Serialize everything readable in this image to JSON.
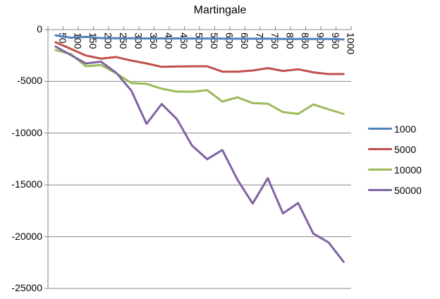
{
  "chart_data": {
    "type": "line",
    "title": "Martingale",
    "xlabel": "",
    "ylabel": "",
    "ylim": [
      -25000,
      0
    ],
    "yticks": [
      0,
      -5000,
      -10000,
      -15000,
      -20000,
      -25000
    ],
    "grid": true,
    "legend_position": "right",
    "x_axis_position": "top (at y=0), labels rotated 90°",
    "categories": [
      "50",
      "100",
      "150",
      "200",
      "250",
      "300",
      "350",
      "400",
      "450",
      "500",
      "550",
      "600",
      "650",
      "700",
      "750",
      "800",
      "850",
      "900",
      "950",
      "1000"
    ],
    "series": [
      {
        "name": "1000",
        "color": "#4f81bd",
        "values": [
          -550,
          -780,
          -700,
          -820,
          -840,
          -840,
          -850,
          -850,
          -850,
          -860,
          -860,
          -870,
          -880,
          -880,
          -870,
          -900,
          -900,
          -900,
          -900,
          -950
        ]
      },
      {
        "name": "5000",
        "color": "#c0504d",
        "values": [
          -1220,
          -1850,
          -2500,
          -2800,
          -2650,
          -2990,
          -3270,
          -3600,
          -3560,
          -3540,
          -3540,
          -4060,
          -4060,
          -3950,
          -3720,
          -3990,
          -3830,
          -4130,
          -4290,
          -4290
        ]
      },
      {
        "name": "10000",
        "color": "#9bbb59",
        "values": [
          -1970,
          -2360,
          -3540,
          -3420,
          -4220,
          -5170,
          -5240,
          -5710,
          -5990,
          -6000,
          -5850,
          -6950,
          -6540,
          -7100,
          -7150,
          -7960,
          -8140,
          -7230,
          -7700,
          -8140
        ]
      },
      {
        "name": "50000",
        "color": "#8064a2",
        "values": [
          -1630,
          -2450,
          -3270,
          -3100,
          -4170,
          -5900,
          -9100,
          -7190,
          -8640,
          -11200,
          -12520,
          -11630,
          -14500,
          -16800,
          -14350,
          -17750,
          -16750,
          -19700,
          -20550,
          -22430
        ]
      }
    ]
  },
  "title": "Martingale",
  "y_axis": {
    "ticks": [
      "0",
      "-5000",
      "-10000",
      "-15000",
      "-20000",
      "-25000"
    ]
  },
  "legend": {
    "items": [
      "1000",
      "5000",
      "10000",
      "50000"
    ]
  },
  "colors": {
    "gridline": "#868686",
    "axis": "#868686"
  }
}
